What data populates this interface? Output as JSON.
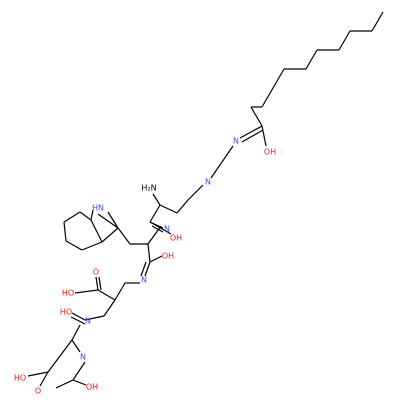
{
  "nodes": [
    {
      "label": "OH"
    },
    {
      "label": "N"
    },
    {
      "label": "N"
    },
    {
      "label": "H₂N"
    },
    {
      "label": "N"
    },
    {
      "label": "OH"
    },
    {
      "label": "HN"
    },
    {
      "label": "N"
    },
    {
      "label": "OH"
    },
    {
      "label": "O"
    },
    {
      "label": "HO"
    },
    {
      "label": "HO"
    },
    {
      "label": "N"
    },
    {
      "label": "N"
    },
    {
      "label": "O"
    },
    {
      "label": "HO"
    },
    {
      "label": "OH"
    }
  ]
}
